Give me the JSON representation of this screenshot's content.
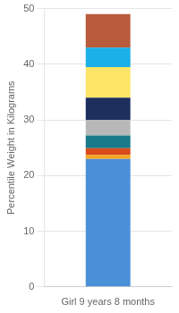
{
  "chart_data": {
    "type": "bar",
    "stacked": true,
    "categories": [
      "Girl 9 years 8 months"
    ],
    "series": [
      {
        "color": "#4a90d9",
        "values": [
          23.0
        ]
      },
      {
        "color": "#f5a623",
        "values": [
          0.7
        ]
      },
      {
        "color": "#d94c1a",
        "values": [
          1.2
        ]
      },
      {
        "color": "#1a7a8a",
        "values": [
          2.3
        ]
      },
      {
        "color": "#b8b8b8",
        "values": [
          2.8
        ]
      },
      {
        "color": "#1e2f5e",
        "values": [
          4.0
        ]
      },
      {
        "color": "#fce566",
        "values": [
          5.5
        ]
      },
      {
        "color": "#1ab0e8",
        "values": [
          3.5
        ]
      },
      {
        "color": "#b85c3c",
        "values": [
          6.0
        ]
      }
    ],
    "ylabel": "Percentile Weight in Kilograms",
    "ylim": [
      0,
      50
    ],
    "yticks": [
      0,
      10,
      20,
      30,
      40,
      50
    ],
    "grid": true
  }
}
